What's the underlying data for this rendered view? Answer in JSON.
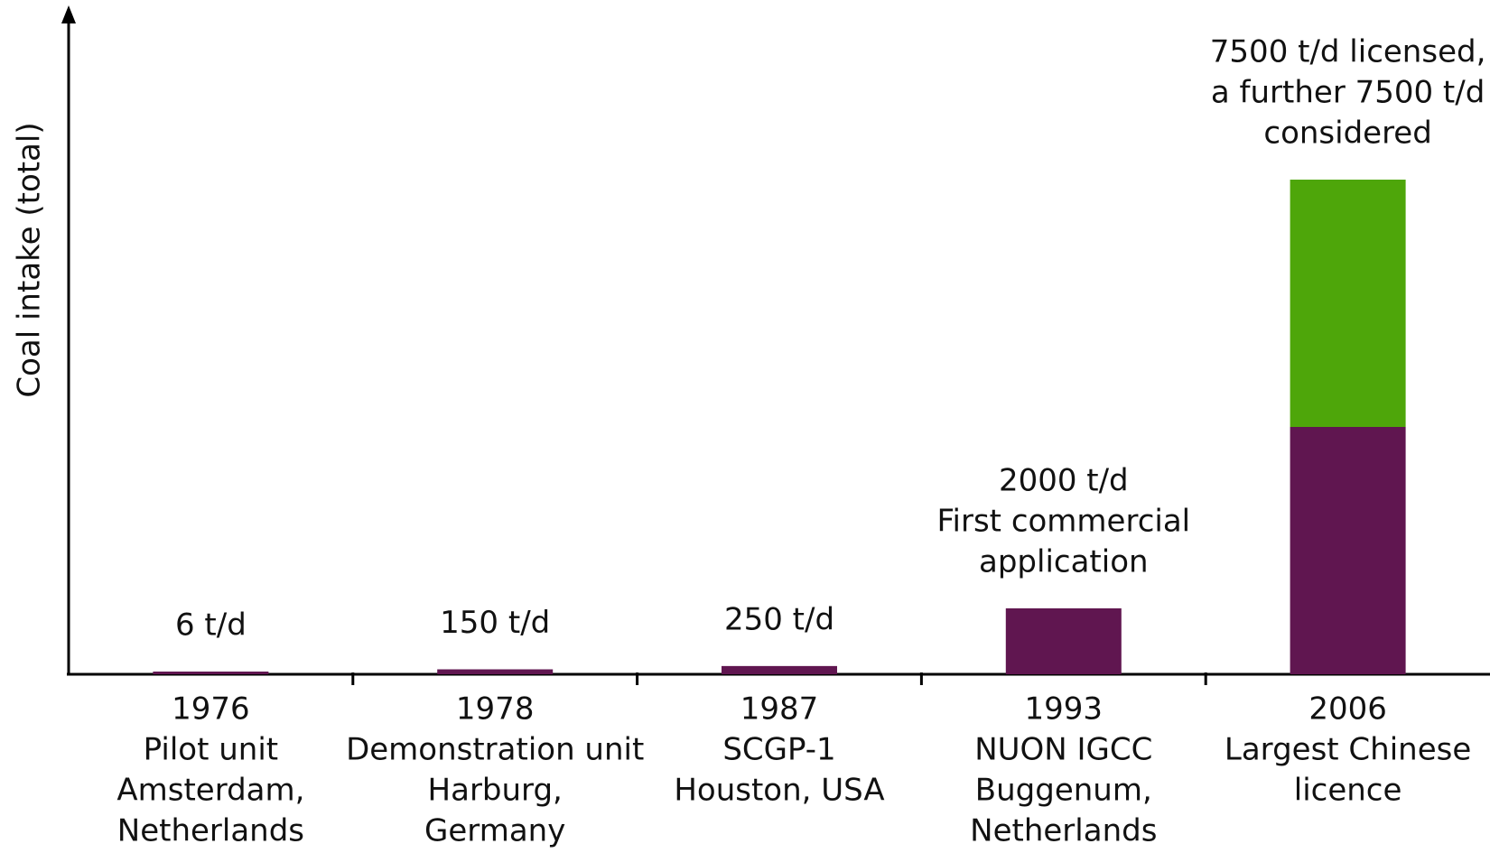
{
  "chart_data": {
    "type": "stacked_bar",
    "y_label": "Coal intake (total)",
    "categories": [
      "1976",
      "1978",
      "1987",
      "1993",
      "2006"
    ],
    "category_notes": [
      [
        "Pilot unit",
        "Amsterdam,",
        "Netherlands"
      ],
      [
        "Demonstration unit",
        "Harburg,",
        "Germany"
      ],
      [
        "SCGP-1",
        "Houston, USA"
      ],
      [
        "NUON IGCC",
        "Buggenum,",
        "Netherlands"
      ],
      [
        "Largest Chinese",
        "licence"
      ]
    ],
    "series": [
      {
        "color": "#601650",
        "values": [
          6,
          150,
          250,
          2000,
          7500
        ],
        "value_labels": [
          "6 t/d",
          "150 t/d",
          "250 t/d",
          "2000 t/d",
          null
        ]
      },
      {
        "color": "#4ea60a",
        "values": [
          null,
          null,
          null,
          null,
          7500
        ]
      }
    ],
    "annotations": [
      {
        "category": 3,
        "lines": [
          "First commercial",
          "application"
        ]
      },
      {
        "category": 4,
        "lines": [
          "7500 t/d licensed,",
          "a further 7500 t/d",
          "considered"
        ]
      }
    ]
  }
}
